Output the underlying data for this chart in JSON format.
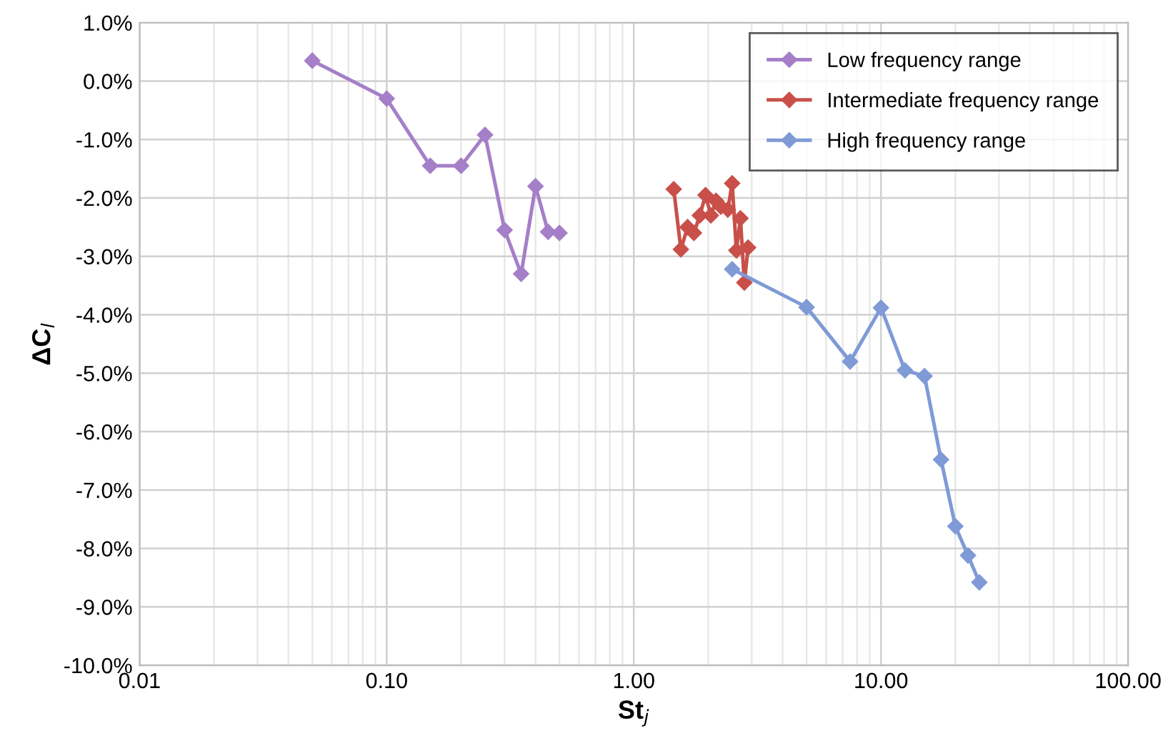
{
  "chart_data": {
    "type": "line",
    "xlabel": "St$_{j}$",
    "ylabel": "ΔC$_{l}$",
    "log": "x",
    "grid": true,
    "legend": "top right",
    "marker": "diamond",
    "line_style": "solid",
    "xlim": [
      0.01,
      100
    ],
    "xticks": [
      {
        "value": 0.01,
        "label": "0.01"
      },
      {
        "value": 0.1,
        "label": "0.10"
      },
      {
        "value": 1,
        "label": "1.00"
      },
      {
        "value": 10,
        "label": "10.00"
      },
      {
        "value": 100,
        "label": "100.00"
      }
    ],
    "ylim": [
      -10,
      1
    ],
    "yticks": [
      {
        "value": 1,
        "label": "1.0%"
      },
      {
        "value": 0,
        "label": "0.0%"
      },
      {
        "value": -1,
        "label": "-1.0%"
      },
      {
        "value": -2,
        "label": "-2.0%"
      },
      {
        "value": -3,
        "label": "-3.0%"
      },
      {
        "value": -4,
        "label": "-4.0%"
      },
      {
        "value": -5,
        "label": "-5.0%"
      },
      {
        "value": -6,
        "label": "-6.0%"
      },
      {
        "value": -7,
        "label": "-7.0%"
      },
      {
        "value": -8,
        "label": "-8.0%"
      },
      {
        "value": -9,
        "label": "-9.0%"
      },
      {
        "value": -10,
        "label": "-10.0%"
      }
    ],
    "series": [
      {
        "name": "Low frequency range",
        "color": "#a57fc8",
        "x": [
          0.05,
          0.1,
          0.15,
          0.2,
          0.25,
          0.3,
          0.35,
          0.4,
          0.45,
          0.5
        ],
        "values": [
          0.35,
          -0.3,
          -1.45,
          -1.45,
          -0.92,
          -2.55,
          -3.3,
          -1.8,
          -2.58,
          -2.6
        ]
      },
      {
        "name": "Intermediate frequency range",
        "color": "#c9504a",
        "x": [
          1.45,
          1.55,
          1.65,
          1.75,
          1.85,
          1.95,
          2.05,
          2.15,
          2.25,
          2.4,
          2.5,
          2.6,
          2.7,
          2.8,
          2.9
        ],
        "values": [
          -1.85,
          -2.88,
          -2.5,
          -2.6,
          -2.3,
          -1.95,
          -2.3,
          -2.05,
          -2.15,
          -2.2,
          -1.75,
          -2.9,
          -2.35,
          -3.45,
          -2.85
        ]
      },
      {
        "name": "High frequency range",
        "color": "#7f9ad6",
        "x": [
          2.5,
          5,
          7.5,
          10,
          12.5,
          15,
          17.5,
          20,
          22.5,
          25
        ],
        "values": [
          -3.22,
          -3.87,
          -4.8,
          -3.88,
          -4.95,
          -5.05,
          -6.48,
          -7.62,
          -8.12,
          -8.58
        ]
      }
    ]
  }
}
